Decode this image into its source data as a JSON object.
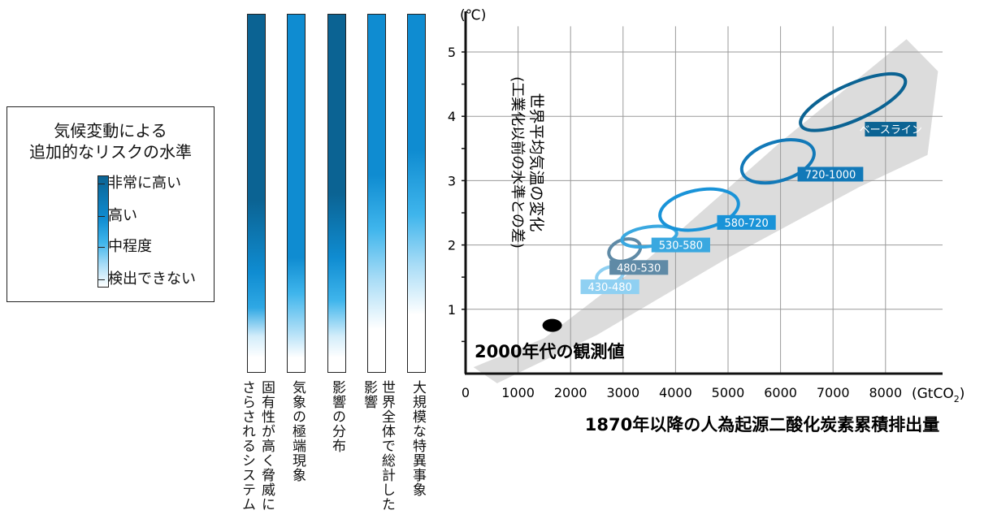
{
  "legend": {
    "title_line1": "気候変動による",
    "title_line2": "追加的なリスクの水準",
    "levels": [
      "非常に高い",
      "高い",
      "中程度",
      "検出できない"
    ]
  },
  "risk_bars": [
    {
      "label_col1": "固有性が高く脅威に",
      "label_col2": "さらされるシステム",
      "stops": [
        [
          "#0b6393",
          0
        ],
        [
          "#0b6393",
          52
        ],
        [
          "#0f8cd1",
          72
        ],
        [
          "#2fa8e4",
          82
        ],
        [
          "#d3edfa",
          90
        ],
        [
          "#ffffff",
          96
        ]
      ]
    },
    {
      "label_col1": "気象の極端現象",
      "label_col2": "",
      "stops": [
        [
          "#0f8cd1",
          0
        ],
        [
          "#0f8cd1",
          68
        ],
        [
          "#3fb5ec",
          78
        ],
        [
          "#a8dcf6",
          88
        ],
        [
          "#ffffff",
          96
        ]
      ]
    },
    {
      "label_col1": "影響の分布",
      "label_col2": "",
      "stops": [
        [
          "#0b6393",
          0
        ],
        [
          "#0b6393",
          50
        ],
        [
          "#0f8cd1",
          68
        ],
        [
          "#3fb5ec",
          80
        ],
        [
          "#d3edfa",
          90
        ],
        [
          "#ffffff",
          96
        ]
      ]
    },
    {
      "label_col1": "世界全体で総計した",
      "label_col2": "影響",
      "stops": [
        [
          "#0f8cd1",
          0
        ],
        [
          "#0f8cd1",
          45
        ],
        [
          "#3fb5ec",
          60
        ],
        [
          "#a8dcf6",
          74
        ],
        [
          "#ffffff",
          88
        ]
      ]
    },
    {
      "label_col1": "大規模な特異事象",
      "label_col2": "",
      "stops": [
        [
          "#0f8cd1",
          0
        ],
        [
          "#0f8cd1",
          38
        ],
        [
          "#3fb5ec",
          56
        ],
        [
          "#a8dcf6",
          70
        ],
        [
          "#ffffff",
          84
        ]
      ]
    }
  ],
  "chart_data": {
    "type": "scatter",
    "y_unit": "(℃)",
    "x_unit": "(GtCO2)",
    "ylabel_line1": "世界平均気温の変化",
    "ylabel_line2": "(工業化以前の水準との差)",
    "xlabel": "1870年以降の人為起源二酸化炭素累積排出量",
    "xlim": [
      0,
      8700
    ],
    "ylim": [
      0,
      5.5
    ],
    "x_ticks": [
      0,
      1000,
      2000,
      3000,
      4000,
      5000,
      6000,
      7000,
      8000
    ],
    "y_ticks": [
      1,
      2,
      3,
      4,
      5
    ],
    "grid": true,
    "observation": {
      "label": "2000年代の観測値",
      "x": 1650,
      "y": 0.75
    },
    "uncertainty_band": [
      [
        150,
        0.1
      ],
      [
        1500,
        0.55
      ],
      [
        3500,
        1.8
      ],
      [
        6000,
        3.6
      ],
      [
        8400,
        5.2
      ],
      [
        9000,
        4.7
      ],
      [
        8800,
        3.4
      ],
      [
        7500,
        2.9
      ],
      [
        5000,
        1.8
      ],
      [
        2500,
        0.6
      ],
      [
        600,
        -0.15
      ]
    ],
    "scenarios": [
      {
        "name": "430-480",
        "x": 2750,
        "y": 1.53,
        "color": "#8fd0f2",
        "label_x": 2750,
        "label_y": 1.35
      },
      {
        "name": "480-530",
        "x": 3030,
        "y": 1.92,
        "color": "#5f8aa6",
        "label_x": 3300,
        "label_y": 1.65
      },
      {
        "name": "530-580",
        "x": 3500,
        "y": 2.13,
        "color": "#3aa8e0",
        "label_x": 4100,
        "label_y": 2.0
      },
      {
        "name": "580-720",
        "x": 4450,
        "y": 2.55,
        "color": "#1993d8",
        "label_x": 5350,
        "label_y": 2.35
      },
      {
        "name": "720-1000",
        "x": 5950,
        "y": 3.3,
        "color": "#1279b8",
        "label_x": 6950,
        "label_y": 3.1
      },
      {
        "name": "ベースライン",
        "x": 7380,
        "y": 4.22,
        "color": "#0b6393",
        "label_x": 8100,
        "label_y": 3.8
      }
    ]
  }
}
